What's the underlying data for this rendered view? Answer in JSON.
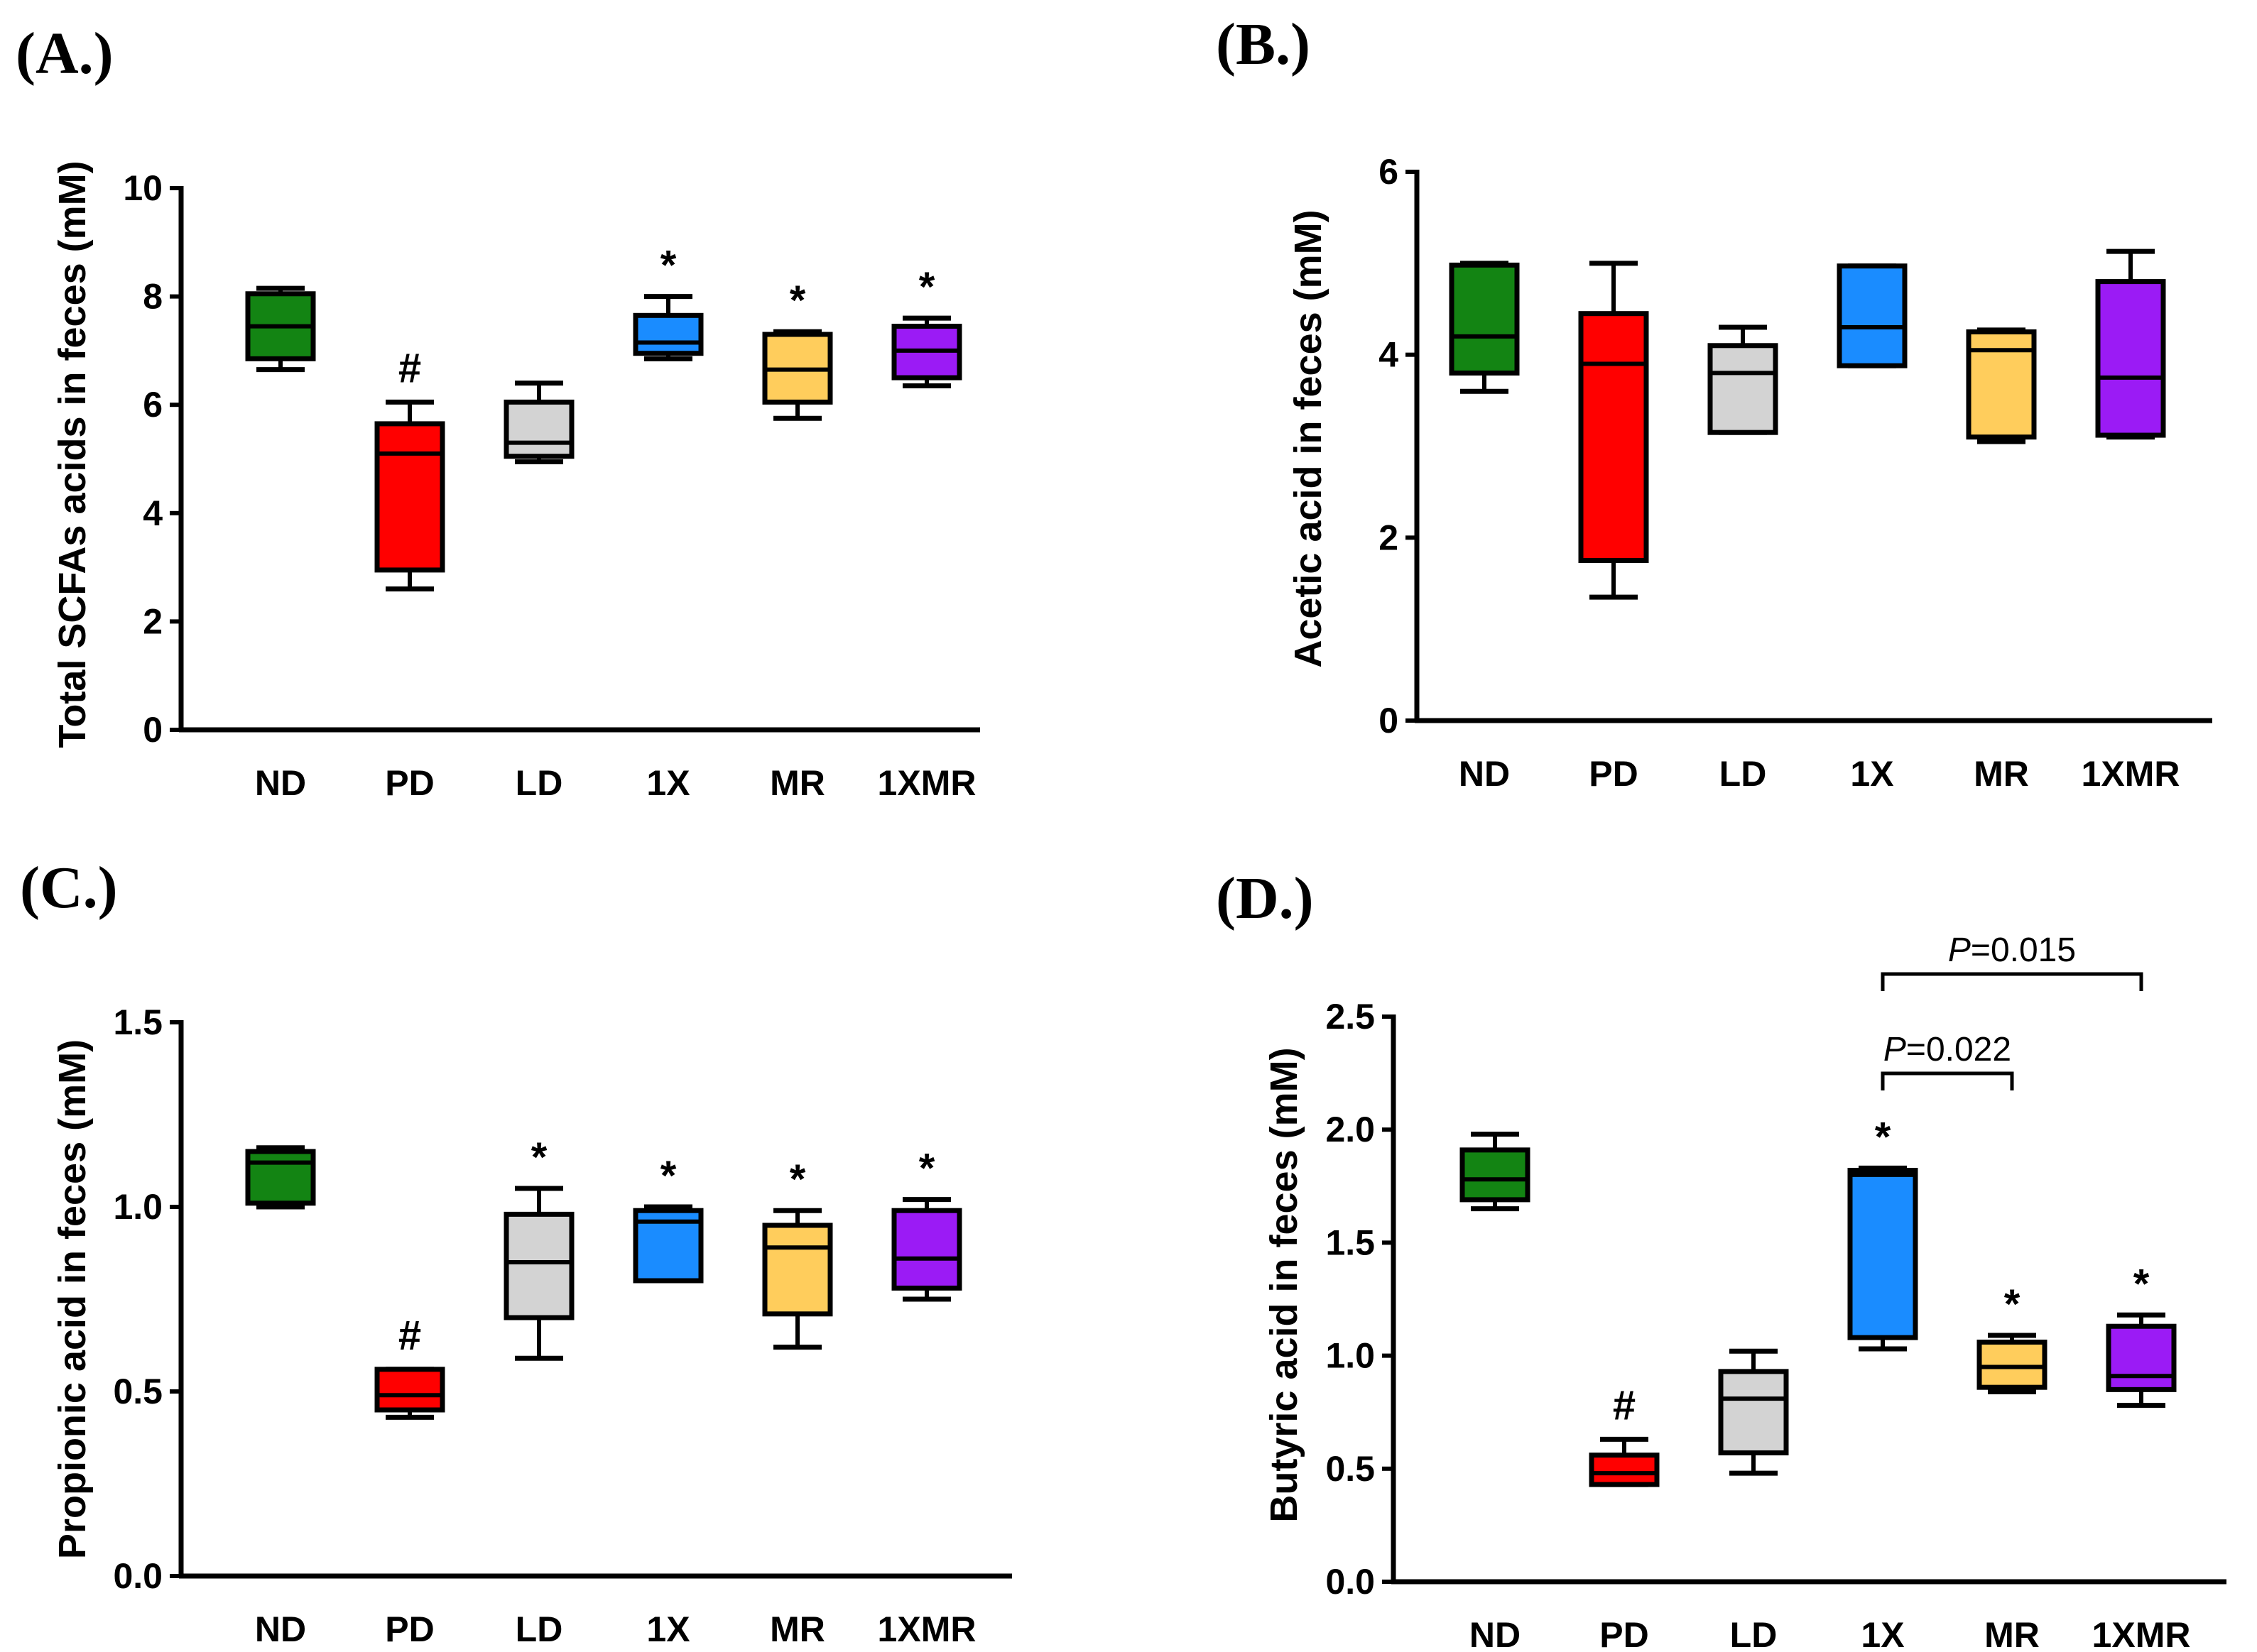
{
  "colors": {
    "ND": "#138413",
    "PD": "#ff0000",
    "LD": "#d3d3d3",
    "1X": "#1a8cff",
    "MR": "#ffcd5c",
    "1XMR": "#9b1bf5"
  },
  "chart_data": [
    {
      "id": "A",
      "type": "box",
      "panel_label": "(A.)",
      "ylabel": "Total SCFAs acids in feces (mM)",
      "ylim": [
        0,
        10
      ],
      "yticks": [
        0,
        2,
        4,
        6,
        8,
        10
      ],
      "ytick_labels": [
        "0",
        "2",
        "4",
        "6",
        "8",
        "10"
      ],
      "categories": [
        "ND",
        "PD",
        "LD",
        "1X",
        "MR",
        "1XMR"
      ],
      "boxes": [
        {
          "min": 6.65,
          "q1": 6.85,
          "median": 7.45,
          "q3": 8.05,
          "max": 8.15,
          "sig": ""
        },
        {
          "min": 2.6,
          "q1": 2.95,
          "median": 5.1,
          "q3": 5.65,
          "max": 6.05,
          "sig": "#"
        },
        {
          "min": 4.95,
          "q1": 5.05,
          "median": 5.3,
          "q3": 6.05,
          "max": 6.4,
          "sig": ""
        },
        {
          "min": 6.85,
          "q1": 6.95,
          "median": 7.15,
          "q3": 7.65,
          "max": 8.0,
          "sig": "*"
        },
        {
          "min": 5.75,
          "q1": 6.05,
          "median": 6.65,
          "q3": 7.3,
          "max": 7.35,
          "sig": "*"
        },
        {
          "min": 6.35,
          "q1": 6.5,
          "median": 7.0,
          "q3": 7.45,
          "max": 7.6,
          "sig": "*"
        }
      ]
    },
    {
      "id": "B",
      "type": "box",
      "panel_label": "(B.)",
      "ylabel": "Acetic acid in feces (mM)",
      "ylim": [
        0,
        6
      ],
      "yticks": [
        0,
        2,
        4,
        6
      ],
      "ytick_labels": [
        "0",
        "2",
        "4",
        "6"
      ],
      "categories": [
        "ND",
        "PD",
        "LD",
        "1X",
        "MR",
        "1XMR"
      ],
      "boxes": [
        {
          "min": 3.6,
          "q1": 3.8,
          "median": 4.2,
          "q3": 4.98,
          "max": 5.0,
          "sig": ""
        },
        {
          "min": 1.35,
          "q1": 1.75,
          "median": 3.9,
          "q3": 4.45,
          "max": 5.0,
          "sig": ""
        },
        {
          "min": 3.15,
          "q1": 3.15,
          "median": 3.8,
          "q3": 4.1,
          "max": 4.3,
          "sig": ""
        },
        {
          "min": 3.88,
          "q1": 3.88,
          "median": 4.3,
          "q3": 4.97,
          "max": 4.97,
          "sig": ""
        },
        {
          "min": 3.05,
          "q1": 3.1,
          "median": 4.05,
          "q3": 4.25,
          "max": 4.27,
          "sig": ""
        },
        {
          "min": 3.1,
          "q1": 3.12,
          "median": 3.75,
          "q3": 4.8,
          "max": 5.13,
          "sig": ""
        }
      ]
    },
    {
      "id": "C",
      "type": "box",
      "panel_label": "(C.)",
      "ylabel": "Propionic acid in feces (mM)",
      "ylim": [
        0,
        1.5
      ],
      "yticks": [
        0,
        0.5,
        1.0,
        1.5
      ],
      "ytick_labels": [
        "0.0",
        "0.5",
        "1.0",
        "1.5"
      ],
      "categories": [
        "ND",
        "PD",
        "LD",
        "1X",
        "MR",
        "1XMR"
      ],
      "boxes": [
        {
          "min": 1.0,
          "q1": 1.01,
          "median": 1.12,
          "q3": 1.15,
          "max": 1.16,
          "sig": ""
        },
        {
          "min": 0.43,
          "q1": 0.45,
          "median": 0.49,
          "q3": 0.56,
          "max": 0.56,
          "sig": "#"
        },
        {
          "min": 0.59,
          "q1": 0.7,
          "median": 0.85,
          "q3": 0.98,
          "max": 1.05,
          "sig": "*"
        },
        {
          "min": 0.8,
          "q1": 0.8,
          "median": 0.96,
          "q3": 0.99,
          "max": 1.0,
          "sig": "*"
        },
        {
          "min": 0.62,
          "q1": 0.71,
          "median": 0.89,
          "q3": 0.95,
          "max": 0.99,
          "sig": "*"
        },
        {
          "min": 0.75,
          "q1": 0.78,
          "median": 0.86,
          "q3": 0.99,
          "max": 1.02,
          "sig": "*"
        }
      ]
    },
    {
      "id": "D",
      "type": "box",
      "panel_label": "(D.)",
      "ylabel": "Butyric acid in feces (mM)",
      "ylim": [
        0,
        2.5
      ],
      "yticks": [
        0,
        0.5,
        1.0,
        1.5,
        2.0,
        2.5
      ],
      "ytick_labels": [
        "0.0",
        "0.5",
        "1.0",
        "1.5",
        "2.0",
        "2.5"
      ],
      "categories": [
        "ND",
        "PD",
        "LD",
        "1X",
        "MR",
        "1XMR"
      ],
      "boxes": [
        {
          "min": 1.65,
          "q1": 1.69,
          "median": 1.78,
          "q3": 1.91,
          "max": 1.98,
          "sig": ""
        },
        {
          "min": 0.43,
          "q1": 0.43,
          "median": 0.48,
          "q3": 0.56,
          "max": 0.63,
          "sig": "#"
        },
        {
          "min": 0.48,
          "q1": 0.57,
          "median": 0.81,
          "q3": 0.93,
          "max": 1.02,
          "sig": ""
        },
        {
          "min": 1.03,
          "q1": 1.08,
          "median": 1.8,
          "q3": 1.82,
          "max": 1.83,
          "sig": "*"
        },
        {
          "min": 0.84,
          "q1": 0.86,
          "median": 0.95,
          "q3": 1.06,
          "max": 1.09,
          "sig": "*"
        },
        {
          "min": 0.78,
          "q1": 0.85,
          "median": 0.91,
          "q3": 1.13,
          "max": 1.18,
          "sig": "*"
        }
      ],
      "comparisons": [
        {
          "from": "1X",
          "to": "MR",
          "label_prefix": "P",
          "label_value": "=0.022"
        },
        {
          "from": "1X",
          "to": "1XMR",
          "label_prefix": "P",
          "label_value": "=0.015"
        }
      ]
    }
  ]
}
